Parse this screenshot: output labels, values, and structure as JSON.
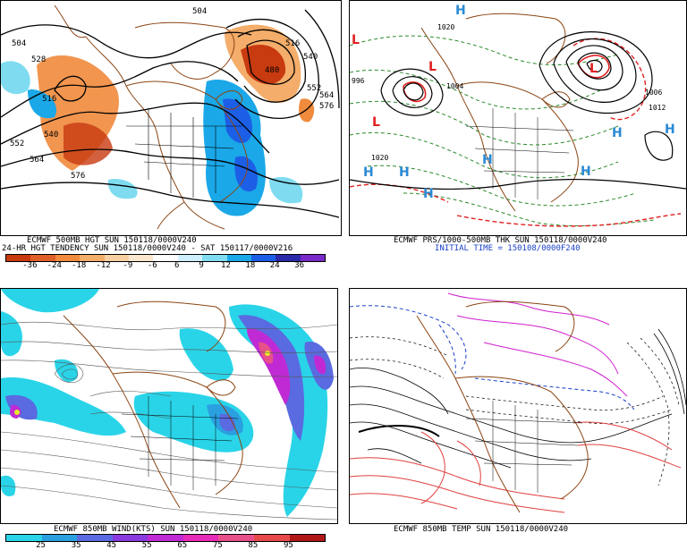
{
  "panels": {
    "p1": {
      "caption1": "ECMWF 500MB HGT SUN 150118/0000V240",
      "caption2": "24-HR HGT TENDENCY SUN 150118/0000V240 - SAT 150117/0000V216",
      "colorbar_ticks": [
        "-36",
        "-24",
        "-18",
        "-12",
        "-9",
        "-6",
        "6",
        "9",
        "12",
        "18",
        "24",
        "36"
      ],
      "colorbar_colors": [
        "#c83a10",
        "#e0602a",
        "#f08a3c",
        "#f4ad6a",
        "#f7cfa0",
        "#fbe6cf",
        "#ffffff",
        "#cfefff",
        "#7fdcf0",
        "#1aa8e8",
        "#1c5fe6",
        "#2a2aa8",
        "#7a2ac8"
      ],
      "contour_labels": [
        "504",
        "528",
        "516",
        "540",
        "552",
        "564",
        "576",
        "504",
        "480",
        "516",
        "540",
        "552",
        "564",
        "576"
      ]
    },
    "p2": {
      "caption1": "ECMWF PRS/1000-500MB THK SUN 150118/0000V240",
      "caption2": "INITIAL TIME = 150108/0000F240",
      "lows": [
        "L",
        "L",
        "L",
        "L"
      ],
      "highs": [
        "H",
        "H",
        "H",
        "H",
        "H",
        "H",
        "H",
        "H"
      ],
      "contour_labels": [
        "996",
        "1020",
        "1004",
        "1020",
        "1006",
        "1012"
      ]
    },
    "p3": {
      "caption1": "ECMWF 850MB WIND(KTS) SUN 150118/0000V240",
      "colorbar_ticks": [
        "25",
        "35",
        "45",
        "55",
        "65",
        "75",
        "85",
        "95"
      ],
      "colorbar_colors": [
        "#2ad4e8",
        "#2aa0e0",
        "#5a6ae0",
        "#8a3ae0",
        "#c02ad4",
        "#e82ab8",
        "#e8508a",
        "#e84a4a",
        "#b01818"
      ]
    },
    "p4": {
      "caption1": "ECMWF 850MB TEMP SUN 150118/0000V240"
    }
  }
}
